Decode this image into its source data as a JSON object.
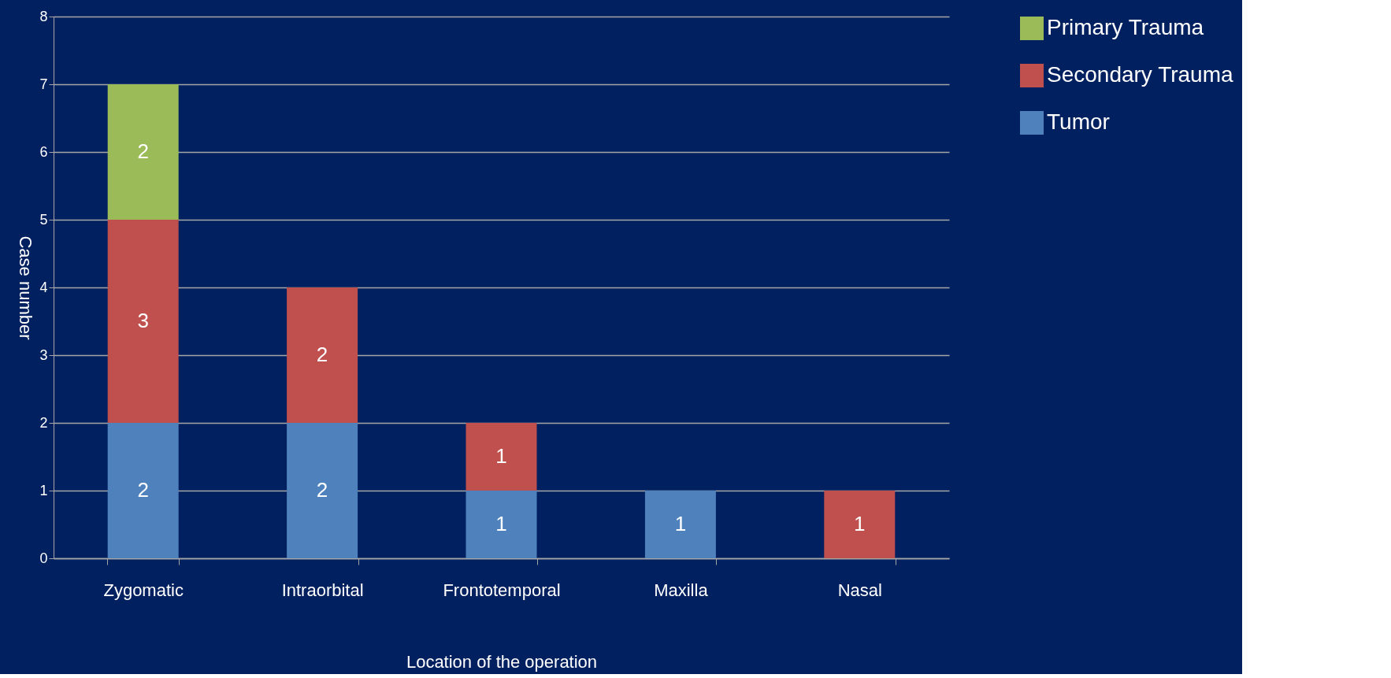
{
  "chart_data": {
    "type": "bar",
    "stacked": true,
    "xlabel": "Location of the operation",
    "ylabel": "Case number",
    "categories": [
      "Zygomatic",
      "Intraorbital",
      "Frontotemporal",
      "Maxilla",
      "Nasal"
    ],
    "series": [
      {
        "name": "Tumor",
        "color": "#4f81bd",
        "values": [
          2,
          2,
          1,
          1,
          null
        ]
      },
      {
        "name": "Secondary Trauma",
        "color": "#c0504d",
        "values": [
          3,
          2,
          1,
          null,
          1
        ]
      },
      {
        "name": "Primary Trauma",
        "color": "#9bbb59",
        "values": [
          2,
          null,
          null,
          null,
          null
        ]
      }
    ],
    "ylim": [
      0,
      8
    ],
    "yticks": [
      0,
      1,
      2,
      3,
      4,
      5,
      6,
      7,
      8
    ],
    "grid": "y",
    "legend": "right",
    "data_labels": true
  }
}
